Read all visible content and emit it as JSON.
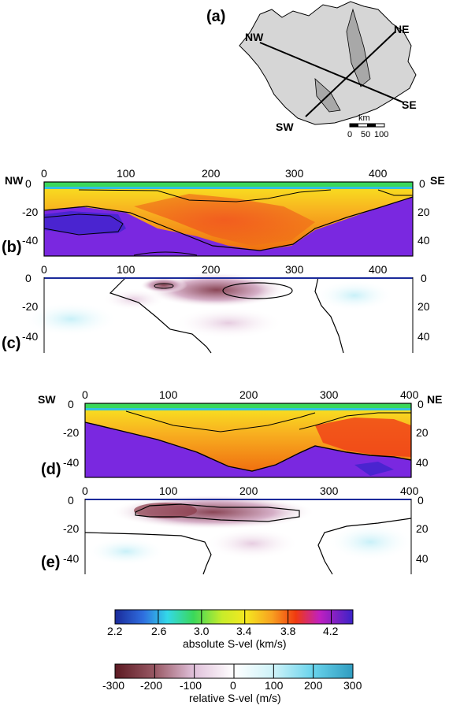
{
  "map": {
    "panel_label": "(a)",
    "endpoints": {
      "nw": "NW",
      "ne": "NE",
      "se": "SE",
      "sw": "SW"
    },
    "scale": {
      "unit": "km",
      "ticks": [
        "0",
        "50",
        "100"
      ]
    }
  },
  "sections": [
    {
      "id": "b",
      "panel_label": "(b)",
      "left_end": "NW",
      "right_end": "SE",
      "type": "absolute",
      "x_ticks": [
        "0",
        "100",
        "200",
        "300",
        "400"
      ],
      "y_ticks": [
        "0",
        "-20",
        "-40"
      ],
      "y_ticks_right": [
        "0",
        "20",
        "40"
      ]
    },
    {
      "id": "c",
      "panel_label": "(c)",
      "type": "relative",
      "x_ticks": [
        "0",
        "100",
        "200",
        "300",
        "400"
      ],
      "y_ticks": [
        "0",
        "-20",
        "-40"
      ],
      "y_ticks_right": [
        "0",
        "20",
        "40"
      ]
    },
    {
      "id": "d",
      "panel_label": "(d)",
      "left_end": "SW",
      "right_end": "NE",
      "type": "absolute",
      "x_ticks": [
        "0",
        "100",
        "200",
        "300",
        "400"
      ],
      "y_ticks": [
        "0",
        "-20",
        "-40"
      ],
      "y_ticks_right": [
        "0",
        "20",
        "40"
      ]
    },
    {
      "id": "e",
      "panel_label": "(e)",
      "type": "relative",
      "x_ticks": [
        "0",
        "100",
        "200",
        "300",
        "400"
      ],
      "y_ticks": [
        "0",
        "-20",
        "-40"
      ],
      "y_ticks_right": [
        "0",
        "20",
        "40"
      ]
    }
  ],
  "colorbar_absolute": {
    "label": "absolute S-vel (km/s)",
    "ticks": [
      "2.2",
      "2.6",
      "3.0",
      "3.4",
      "3.8",
      "4.2"
    ],
    "range": [
      2.2,
      4.4
    ],
    "colors": [
      "#1a2a9a",
      "#2f4fd0",
      "#33a8e8",
      "#33e0e8",
      "#2ad88a",
      "#40e040",
      "#a8e830",
      "#f0f020",
      "#f8c020",
      "#f89020",
      "#f04010",
      "#e02060",
      "#b020c8",
      "#7a28e0",
      "#4a22cc"
    ]
  },
  "colorbar_relative": {
    "label": "relative S-vel (m/s)",
    "ticks": [
      "-300",
      "-200",
      "-100",
      "0",
      "100",
      "200",
      "300"
    ],
    "range": [
      -300,
      300
    ],
    "colors": [
      "#5c1a22",
      "#8a4450",
      "#b88a9a",
      "#e0c4dc",
      "#f6ecf6",
      "#ffffff",
      "#e6f8fb",
      "#b4ecf4",
      "#72d6ec",
      "#3aa8c8"
    ]
  }
}
